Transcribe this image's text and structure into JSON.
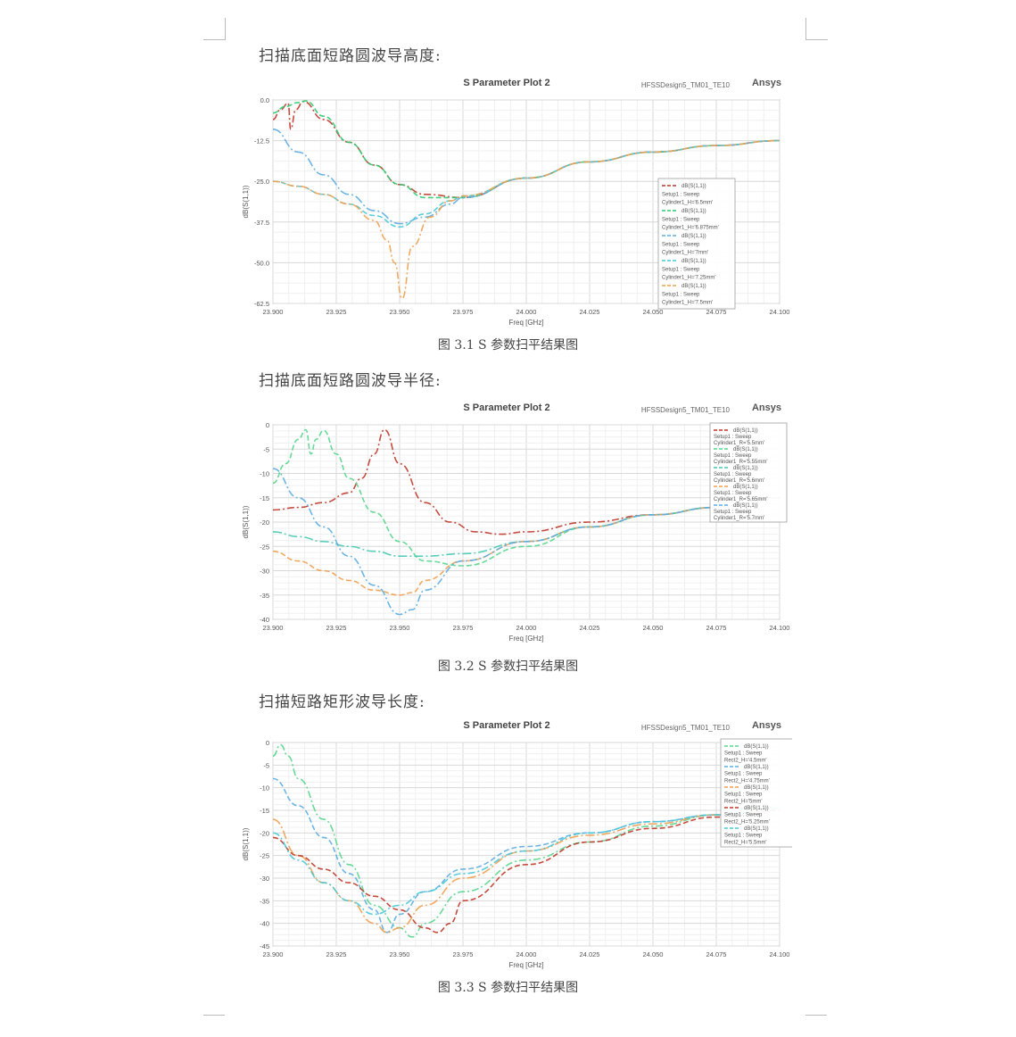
{
  "sections": [
    {
      "heading": "扫描底面短路圆波导高度:",
      "caption": "图 3.1 S 参数扫平结果图"
    },
    {
      "heading": "扫描底面短路圆波导半径:",
      "caption": "图 3.2 S 参数扫平结果图"
    },
    {
      "heading": "扫描短路矩形波导长度:",
      "caption": "图 3.3 S 参数扫平结果图"
    }
  ],
  "plots": [
    {
      "title": "S Parameter Plot 2",
      "design": "HFSSDesign5_TM01_TE10",
      "brand": "Ansys"
    },
    {
      "title": "S Parameter Plot 2",
      "design": "HFSSDesign5_TM01_TE10",
      "brand": "Ansys"
    },
    {
      "title": "S Parameter Plot 2",
      "design": "HFSSDesign5_TM01_TE10",
      "brand": "Ansys"
    }
  ],
  "chart_data": [
    {
      "type": "line",
      "title": "S Parameter Plot 2",
      "xlabel": "Freq [GHz]",
      "ylabel": "dB(S(1,1))",
      "xlim": [
        23.9,
        24.1
      ],
      "ylim": [
        -62.5,
        0
      ],
      "xticks": [
        "23.900",
        "23.925",
        "23.950",
        "23.975",
        "24.000",
        "24.025",
        "24.050",
        "24.075",
        "24.100"
      ],
      "yticks": [
        "0.0",
        "-12.5",
        "-25.0",
        "-37.5",
        "-50.0",
        "-62.5"
      ],
      "grid": true,
      "legend_position": "right",
      "legend_entries": [
        {
          "label": "dB(S(1,1))",
          "sub": "Setup1 : Sweep",
          "param": "Cylinder1_H='6.5mm'"
        },
        {
          "label": "dB(S(1,1))",
          "sub": "Setup1 : Sweep",
          "param": "Cylinder1_H='6.875mm'"
        },
        {
          "label": "dB(S(1,1))",
          "sub": "Setup1 : Sweep",
          "param": "Cylinder1_H='7mm'"
        },
        {
          "label": "dB(S(1,1))",
          "sub": "Setup1 : Sweep",
          "param": "Cylinder1_H='7.25mm'"
        },
        {
          "label": "dB(S(1,1))",
          "sub": "Setup1 : Sweep",
          "param": "Cylinder1_H='7.5mm'"
        }
      ],
      "series": [
        {
          "color": "#c0392b",
          "x": [
            23.9,
            23.903,
            23.906,
            23.907,
            23.909,
            23.912,
            23.92,
            23.93,
            23.94,
            23.95,
            23.96,
            23.975,
            24.0,
            24.025,
            24.05,
            24.075,
            24.1
          ],
          "y": [
            -6,
            -3,
            -1,
            -9,
            -3,
            -0.5,
            -6,
            -13,
            -20,
            -26,
            -29,
            -30,
            -24,
            -19,
            -16,
            -14,
            -12.5
          ]
        },
        {
          "color": "#2ecc71",
          "x": [
            23.9,
            23.905,
            23.91,
            23.913,
            23.92,
            23.93,
            23.94,
            23.95,
            23.96,
            23.97,
            23.975,
            24.0,
            24.025,
            24.05,
            24.075,
            24.1
          ],
          "y": [
            -4,
            -2,
            -0.8,
            -0.3,
            -5,
            -13,
            -20,
            -26,
            -30,
            -30,
            -30,
            -24,
            -19,
            -16,
            -14,
            -12.5
          ]
        },
        {
          "color": "#5dade2",
          "x": [
            23.9,
            23.91,
            23.92,
            23.93,
            23.94,
            23.95,
            23.96,
            23.97,
            23.975,
            24.0,
            24.025,
            24.05,
            24.075,
            24.1
          ],
          "y": [
            -9,
            -16,
            -23,
            -29,
            -34,
            -38,
            -36,
            -32,
            -30,
            -24,
            -19,
            -16,
            -14,
            -12.5
          ]
        },
        {
          "color": "#48c9d8",
          "x": [
            23.9,
            23.91,
            23.92,
            23.93,
            23.94,
            23.95,
            23.96,
            23.97,
            23.975,
            24.0,
            24.025,
            24.05,
            24.075,
            24.1
          ],
          "y": [
            -25,
            -26.5,
            -29,
            -32,
            -35.5,
            -39,
            -35,
            -31,
            -29.5,
            -24,
            -19,
            -16,
            -14,
            -12.5
          ]
        },
        {
          "color": "#f0a050",
          "x": [
            23.9,
            23.91,
            23.92,
            23.93,
            23.94,
            23.945,
            23.948,
            23.951,
            23.955,
            23.962,
            23.97,
            23.975,
            24.0,
            24.025,
            24.05,
            24.075,
            24.1
          ],
          "y": [
            -25,
            -26.5,
            -29,
            -32,
            -37,
            -43,
            -50,
            -61,
            -45,
            -36,
            -31,
            -29.5,
            -24,
            -19,
            -16,
            -14,
            -12.5
          ]
        }
      ]
    },
    {
      "type": "line",
      "title": "S Parameter Plot 2",
      "xlabel": "Freq [GHz]",
      "ylabel": "dB(S(1,1))",
      "xlim": [
        23.9,
        24.1
      ],
      "ylim": [
        -40,
        0
      ],
      "xticks": [
        "23.900",
        "23.925",
        "23.950",
        "23.975",
        "24.000",
        "24.025",
        "24.050",
        "24.075",
        "24.100"
      ],
      "yticks": [
        "0",
        "-5",
        "-10",
        "-15",
        "-20",
        "-25",
        "-30",
        "-35",
        "-40"
      ],
      "grid": true,
      "legend_position": "top-right",
      "legend_entries": [
        {
          "label": "dB(S(1,1))",
          "sub": "Setup1 : Sweep",
          "param": "Cylinder1_R='5.5mm'"
        },
        {
          "label": "dB(S(1,1))",
          "sub": "Setup1 : Sweep",
          "param": "Cylinder1_R='5.55mm'"
        },
        {
          "label": "dB(S(1,1))",
          "sub": "Setup1 : Sweep",
          "param": "Cylinder1_R='5.6mm'"
        },
        {
          "label": "dB(S(1,1))",
          "sub": "Setup1 : Sweep",
          "param": "Cylinder1_R='5.65mm'"
        },
        {
          "label": "dB(S(1,1))",
          "sub": "Setup1 : Sweep",
          "param": "Cylinder1_R='5.7mm'"
        }
      ],
      "series": [
        {
          "color": "#c0392b",
          "x": [
            23.9,
            23.91,
            23.92,
            23.93,
            23.935,
            23.94,
            23.944,
            23.95,
            23.96,
            23.97,
            23.98,
            23.99,
            24.0,
            24.025,
            24.05,
            24.075,
            24.1
          ],
          "y": [
            -17.5,
            -17,
            -16,
            -14,
            -11,
            -6,
            -1,
            -8,
            -16,
            -20,
            -22,
            -22.5,
            -22,
            -20,
            -18.5,
            -17,
            -15
          ]
        },
        {
          "color": "#58d68d",
          "x": [
            23.9,
            23.905,
            23.91,
            23.913,
            23.915,
            23.917,
            23.92,
            23.925,
            23.93,
            23.94,
            23.95,
            23.96,
            23.975,
            24.0,
            24.025,
            24.05,
            24.075,
            24.1
          ],
          "y": [
            -12,
            -8,
            -3,
            -1,
            -6,
            -3,
            -1.2,
            -6,
            -11,
            -18,
            -24,
            -28,
            -29,
            -25,
            -21,
            -18.5,
            -17,
            -15
          ]
        },
        {
          "color": "#48c9b0",
          "x": [
            23.9,
            23.91,
            23.92,
            23.93,
            23.94,
            23.95,
            23.96,
            23.975,
            24.0,
            24.025,
            24.05,
            24.075,
            24.1
          ],
          "y": [
            -22,
            -23,
            -24,
            -25,
            -26,
            -27,
            -27,
            -26.5,
            -24,
            -21,
            -18.5,
            -17,
            -15
          ]
        },
        {
          "color": "#f0a050",
          "x": [
            23.9,
            23.91,
            23.92,
            23.93,
            23.94,
            23.95,
            23.955,
            23.96,
            23.975,
            24.0,
            24.025,
            24.05,
            24.075,
            24.1
          ],
          "y": [
            -26,
            -28,
            -30,
            -32,
            -34,
            -35,
            -34.5,
            -32,
            -28,
            -24,
            -21,
            -18.5,
            -17,
            -15
          ]
        },
        {
          "color": "#5dade2",
          "x": [
            23.9,
            23.91,
            23.92,
            23.93,
            23.94,
            23.95,
            23.955,
            23.96,
            23.975,
            24.0,
            24.025,
            24.05,
            24.075,
            24.1
          ],
          "y": [
            -9,
            -15,
            -21,
            -27,
            -33,
            -39,
            -38,
            -34,
            -28,
            -24,
            -21,
            -18.5,
            -17,
            -15
          ]
        }
      ]
    },
    {
      "type": "line",
      "title": "S Parameter Plot 2",
      "xlabel": "Freq [GHz]",
      "ylabel": "dB(S(1,1))",
      "xlim": [
        23.9,
        24.1
      ],
      "ylim": [
        -45,
        0
      ],
      "xticks": [
        "23.900",
        "23.925",
        "23.950",
        "23.975",
        "24.000",
        "24.025",
        "24.050",
        "24.075",
        "24.100"
      ],
      "yticks": [
        "0",
        "-5",
        "-10",
        "-15",
        "-20",
        "-25",
        "-30",
        "-35",
        "-40",
        "-45"
      ],
      "grid": true,
      "legend_position": "top-right",
      "legend_entries": [
        {
          "label": "dB(S(1,1))",
          "sub": "Setup1 : Sweep",
          "param": "Rect2_H='4.5mm'"
        },
        {
          "label": "dB(S(1,1))",
          "sub": "Setup1 : Sweep",
          "param": "Rect2_H='4.75mm'"
        },
        {
          "label": "dB(S(1,1))",
          "sub": "Setup1 : Sweep",
          "param": "Rect2_H='5mm'"
        },
        {
          "label": "dB(S(1,1))",
          "sub": "Setup1 : Sweep",
          "param": "Rect2_H='5.25mm'"
        },
        {
          "label": "dB(S(1,1))",
          "sub": "Setup1 : Sweep",
          "param": "Rect2_H='5.5mm'"
        }
      ],
      "series": [
        {
          "color": "#58d68d",
          "x": [
            23.9,
            23.903,
            23.906,
            23.91,
            23.92,
            23.93,
            23.94,
            23.95,
            23.955,
            23.96,
            23.975,
            24.0,
            24.025,
            24.05,
            24.075,
            24.1
          ],
          "y": [
            -3,
            -0.5,
            -3,
            -8,
            -17,
            -27,
            -36,
            -41,
            -43,
            -40,
            -33,
            -26,
            -22,
            -18.5,
            -16,
            -14.5
          ]
        },
        {
          "color": "#5dade2",
          "x": [
            23.9,
            23.91,
            23.92,
            23.93,
            23.94,
            23.945,
            23.95,
            23.96,
            23.975,
            24.0,
            24.025,
            24.05,
            24.075,
            24.1
          ],
          "y": [
            -8,
            -14,
            -21,
            -29,
            -37,
            -42,
            -38,
            -33,
            -28,
            -23,
            -20,
            -17.5,
            -16,
            -14.5
          ]
        },
        {
          "color": "#f0a050",
          "x": [
            23.9,
            23.91,
            23.92,
            23.93,
            23.94,
            23.945,
            23.95,
            23.96,
            23.975,
            24.0,
            24.025,
            24.05,
            24.075,
            24.1
          ],
          "y": [
            -17,
            -25,
            -31,
            -35,
            -40,
            -42,
            -41,
            -36,
            -30,
            -24,
            -20.5,
            -18,
            -16,
            -14.5
          ]
        },
        {
          "color": "#c0392b",
          "x": [
            23.9,
            23.91,
            23.92,
            23.93,
            23.94,
            23.95,
            23.96,
            23.965,
            23.97,
            23.975,
            24.0,
            24.025,
            24.05,
            24.075,
            24.1
          ],
          "y": [
            -21,
            -25,
            -28,
            -31,
            -34,
            -37,
            -41,
            -42,
            -40,
            -35,
            -27,
            -22,
            -19,
            -16.5,
            -15
          ]
        },
        {
          "color": "#48c9d8",
          "x": [
            23.9,
            23.91,
            23.92,
            23.93,
            23.94,
            23.95,
            23.96,
            23.975,
            24.0,
            24.025,
            24.05,
            24.075,
            24.1
          ],
          "y": [
            -20,
            -26,
            -31,
            -35,
            -38,
            -36,
            -33,
            -29,
            -24,
            -20,
            -17.5,
            -16,
            -14.5
          ]
        }
      ]
    }
  ]
}
